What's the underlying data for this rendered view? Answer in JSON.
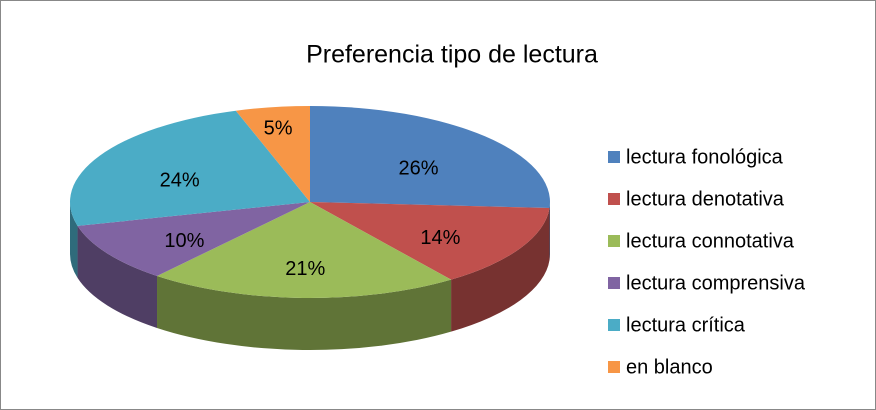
{
  "chart_data": {
    "type": "pie",
    "title": "Preferencia tipo de lectura",
    "categories": [
      "lectura fonológica",
      "lectura denotativa",
      "lectura connotativa",
      "lectura comprensiva",
      "lectura crítica",
      "en blanco"
    ],
    "values": [
      26,
      14,
      21,
      10,
      24,
      5
    ],
    "value_labels": [
      "26%",
      "14%",
      "21%",
      "10%",
      "24%",
      "5%"
    ],
    "colors": [
      "#4f81bd",
      "#c0504d",
      "#9bbb59",
      "#8064a2",
      "#4bacc6",
      "#f79646"
    ],
    "legend": "right"
  }
}
